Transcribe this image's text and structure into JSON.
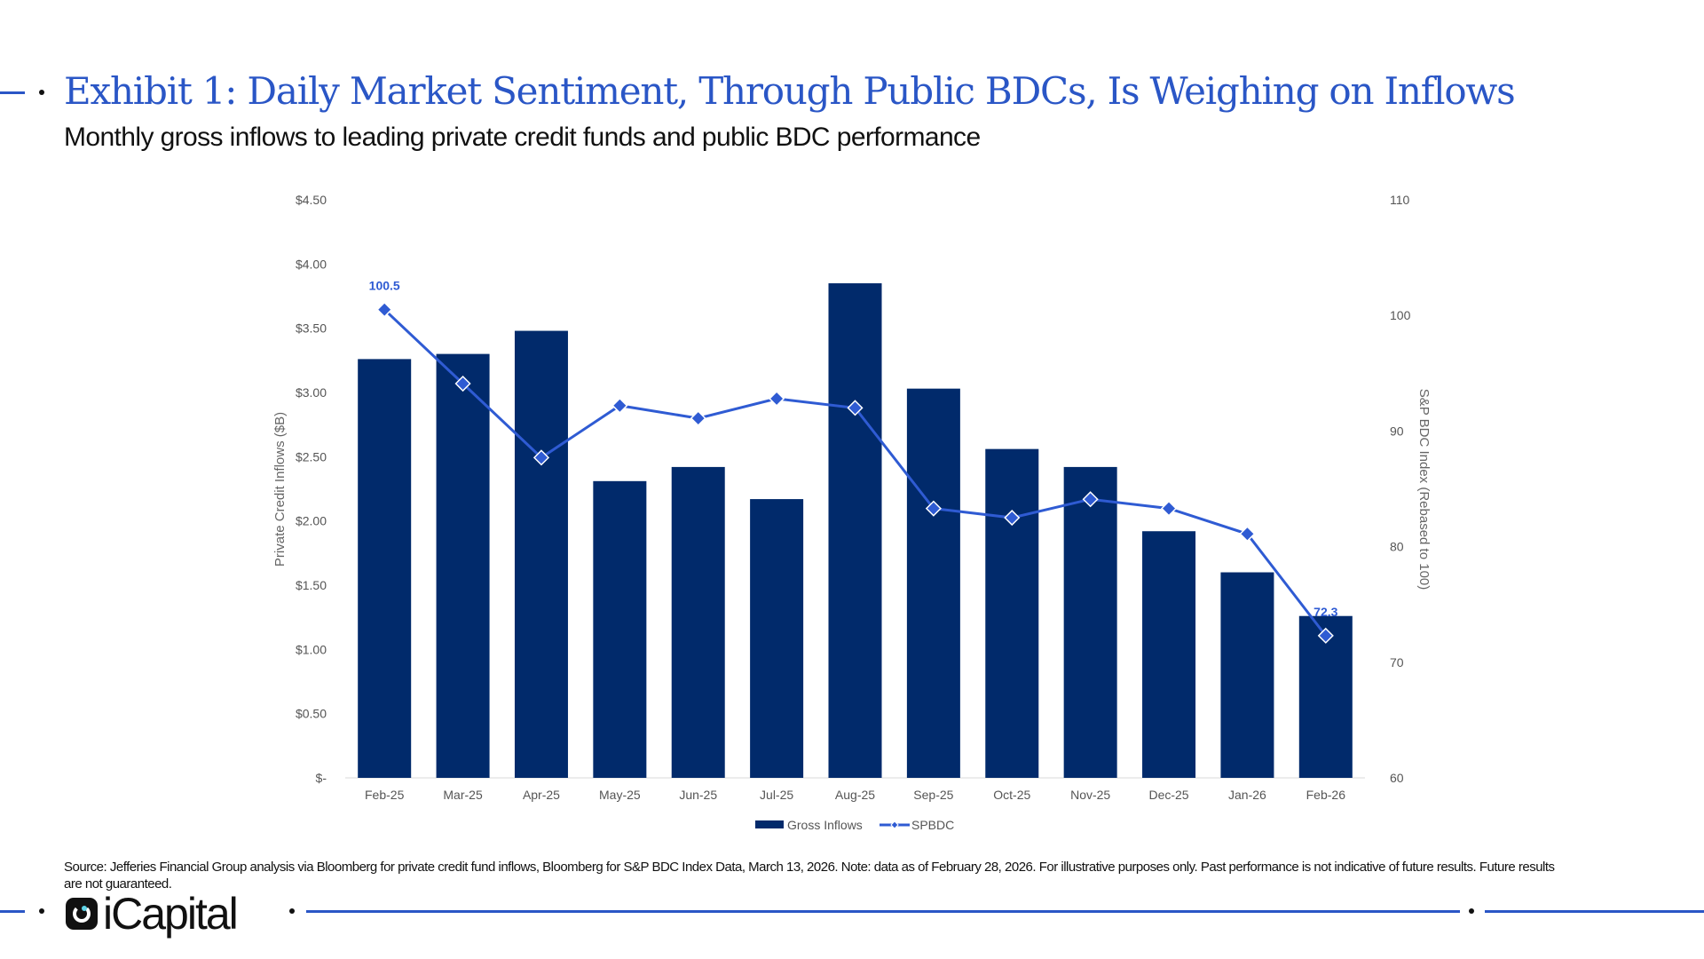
{
  "header": {
    "title": "Exhibit 1: Daily Market Sentiment, Through Public BDCs, Is Weighing on Inflows",
    "subtitle": "Monthly gross inflows to leading private credit funds and public BDC performance"
  },
  "footer": {
    "source": "Source: Jefferies Financial Group analysis via Bloomberg for private credit fund inflows, Bloomberg for S&P BDC Index Data, March 13, 2026. Note: data as of February 28, 2026. For illustrative purposes only. Past performance is not indicative of future results. Future results are not guaranteed.",
    "logo_text": "iCapital"
  },
  "colors": {
    "accent": "#2a56c6",
    "bar": "#012a6b",
    "line": "#2f5bd3"
  },
  "chart_data": {
    "type": "bar+line",
    "categories": [
      "Feb-25",
      "Mar-25",
      "Apr-25",
      "May-25",
      "Jun-25",
      "Jul-25",
      "Aug-25",
      "Sep-25",
      "Oct-25",
      "Nov-25",
      "Dec-25",
      "Jan-26",
      "Feb-26"
    ],
    "series": [
      {
        "name": "Gross Inflows",
        "type": "bar",
        "axis": "left",
        "values": [
          3.26,
          3.3,
          3.48,
          2.31,
          2.42,
          2.17,
          3.85,
          3.03,
          2.56,
          2.42,
          1.92,
          1.6,
          1.26
        ]
      },
      {
        "name": "SPBDC",
        "type": "line",
        "axis": "right",
        "values": [
          100.5,
          94.1,
          87.7,
          92.2,
          91.1,
          92.8,
          92.0,
          83.3,
          82.5,
          84.1,
          83.3,
          81.1,
          72.3
        ],
        "data_labels": {
          "0": "100.5",
          "12": "72.3"
        }
      }
    ],
    "ylabel": "Private Credit Inflows ($B)",
    "ylabel_right": "S&P BDC Index (Rebased to 100)",
    "ylim": [
      0,
      4.5
    ],
    "ylim_right": [
      60,
      110
    ],
    "yticks": [
      "$-",
      "$0.50",
      "$1.00",
      "$1.50",
      "$2.00",
      "$2.50",
      "$3.00",
      "$3.50",
      "$4.00",
      "$4.50"
    ],
    "yticks_right": [
      "60",
      "70",
      "80",
      "90",
      "100",
      "110"
    ],
    "grid": false,
    "legend": "bottom"
  }
}
